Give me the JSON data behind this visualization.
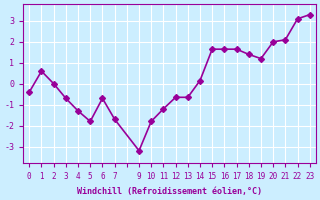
{
  "x": [
    0,
    1,
    2,
    3,
    4,
    5,
    6,
    7,
    9,
    10,
    11,
    12,
    13,
    14,
    15,
    16,
    17,
    18,
    19,
    20,
    21,
    22,
    23
  ],
  "y": [
    -0.4,
    0.6,
    0.0,
    -0.7,
    -1.3,
    -1.8,
    -0.7,
    -1.7,
    -3.2,
    -1.8,
    -1.2,
    -0.65,
    -0.65,
    0.15,
    1.65,
    1.65,
    1.65,
    1.4,
    1.2,
    2.0,
    2.1,
    3.1,
    3.3
  ],
  "line_color": "#990099",
  "marker": "D",
  "marker_size": 3,
  "bg_color": "#cceeff",
  "grid_color": "#ffffff",
  "xlabel": "Windchill (Refroidissement éolien,°C)",
  "xlabel_color": "#990099",
  "tick_color": "#990099",
  "ylim": [
    -3.8,
    3.8
  ],
  "xlim": [
    -0.5,
    23.5
  ],
  "yticks": [
    -3,
    -2,
    -1,
    0,
    1,
    2,
    3
  ],
  "xticks": [
    0,
    1,
    2,
    3,
    4,
    5,
    6,
    7,
    8,
    9,
    10,
    11,
    12,
    13,
    14,
    15,
    16,
    17,
    18,
    19,
    20,
    21,
    22,
    23
  ],
  "xtick_labels": [
    "0",
    "1",
    "2",
    "3",
    "4",
    "5",
    "6",
    "7",
    "",
    "9",
    "10",
    "11",
    "12",
    "13",
    "14",
    "15",
    "16",
    "17",
    "18",
    "19",
    "20",
    "21",
    "22",
    "23"
  ],
  "linewidth": 1.2,
  "axis_color": "#990099"
}
